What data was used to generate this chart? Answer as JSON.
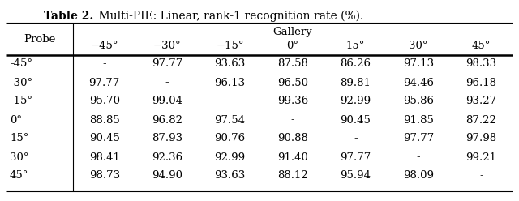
{
  "title_bold": "Table 2.",
  "title_rest": "    Multi-PIE: Linear, rank-1 recognition rate (%).",
  "gallery_header": "Gallery",
  "col_headers": [
    "−45°",
    "−30°",
    "−15°",
    "0°",
    "15°",
    "30°",
    "45°"
  ],
  "row_headers": [
    "-45°",
    "-30°",
    "-15°",
    "0°",
    "15°",
    "30°",
    "45°"
  ],
  "probe_label": "Probe",
  "table_data": [
    [
      "-",
      "97.77",
      "93.63",
      "87.58",
      "86.26",
      "97.13",
      "98.33"
    ],
    [
      "97.77",
      "-",
      "96.13",
      "96.50",
      "89.81",
      "94.46",
      "96.18"
    ],
    [
      "95.70",
      "99.04",
      "-",
      "99.36",
      "92.99",
      "95.86",
      "93.27"
    ],
    [
      "88.85",
      "96.82",
      "97.54",
      "-",
      "90.45",
      "91.85",
      "87.22"
    ],
    [
      "90.45",
      "87.93",
      "90.76",
      "90.88",
      "-",
      "97.77",
      "97.98"
    ],
    [
      "98.41",
      "92.36",
      "92.99",
      "91.40",
      "97.77",
      "-",
      "99.21"
    ],
    [
      "98.73",
      "94.90",
      "93.63",
      "88.12",
      "95.94",
      "98.09",
      "-"
    ]
  ],
  "bg_color": "#ffffff",
  "text_color": "#000000",
  "figsize": [
    6.4,
    2.48
  ],
  "dpi": 100
}
